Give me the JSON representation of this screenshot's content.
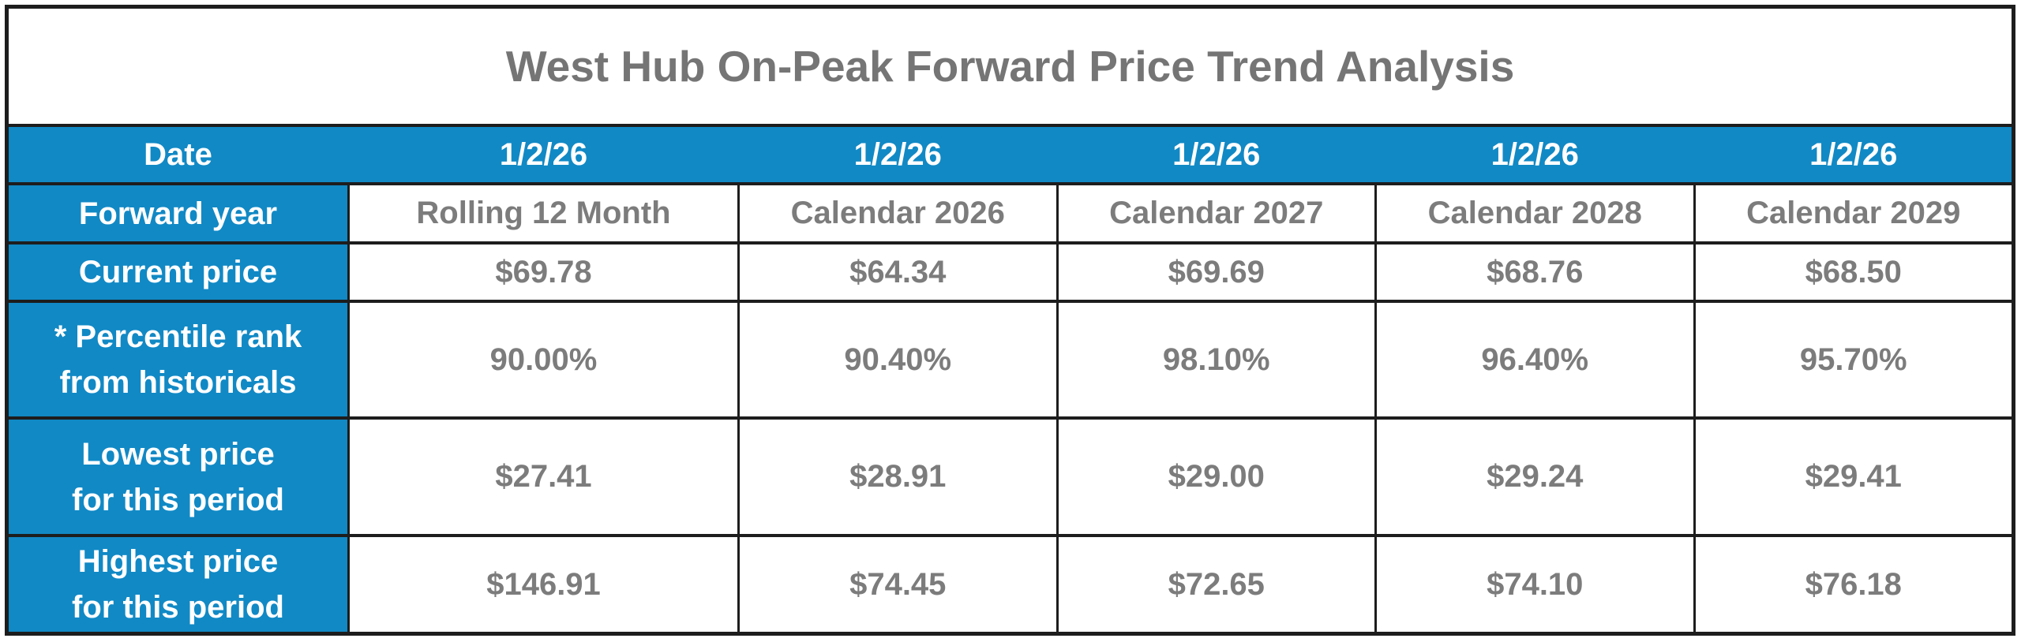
{
  "title": "West Hub On-Peak Forward Price Trend Analysis",
  "colors": {
    "header_blue": "#1189c5",
    "value_gray": "#7c7c7c",
    "title_gray": "#757575",
    "border_black": "#1d1d1d"
  },
  "table": {
    "date_row": {
      "label": "Date",
      "values": [
        "1/2/26",
        "1/2/26",
        "1/2/26",
        "1/2/26",
        "1/2/26"
      ]
    },
    "rows": [
      {
        "key": "forward-year",
        "lines": [
          "Forward year"
        ],
        "values": [
          "Rolling 12 Month",
          "Calendar 2026",
          "Calendar 2027",
          "Calendar 2028",
          "Calendar 2029"
        ]
      },
      {
        "key": "current-price",
        "lines": [
          "Current price"
        ],
        "values": [
          "$69.78",
          "$64.34",
          "$69.69",
          "$68.76",
          "$68.50"
        ]
      },
      {
        "key": "percentile-rank",
        "lines": [
          "* Percentile rank",
          "from historicals"
        ],
        "values": [
          "90.00%",
          "90.40%",
          "98.10%",
          "96.40%",
          "95.70%"
        ]
      },
      {
        "key": "lowest-price",
        "lines": [
          "Lowest price",
          "for this period"
        ],
        "values": [
          "$27.41",
          "$28.91",
          "$29.00",
          "$29.24",
          "$29.41"
        ]
      },
      {
        "key": "highest-price",
        "lines": [
          "Highest price",
          "for this period"
        ],
        "values": [
          "$146.91",
          "$74.45",
          "$72.65",
          "$74.10",
          "$76.18"
        ]
      }
    ]
  },
  "chart_data": {
    "type": "table",
    "title": "West Hub On-Peak Forward Price Trend Analysis",
    "columns": [
      "Row label",
      "Rolling 12 Month",
      "Calendar 2026",
      "Calendar 2027",
      "Calendar 2028",
      "Calendar 2029"
    ],
    "rows": [
      [
        "Date",
        "1/2/26",
        "1/2/26",
        "1/2/26",
        "1/2/26",
        "1/2/26"
      ],
      [
        "Forward year",
        "Rolling 12 Month",
        "Calendar 2026",
        "Calendar 2027",
        "Calendar 2028",
        "Calendar 2029"
      ],
      [
        "Current price",
        "$69.78",
        "$64.34",
        "$69.69",
        "$68.76",
        "$68.50"
      ],
      [
        "* Percentile rank from historicals",
        "90.00%",
        "90.40%",
        "98.10%",
        "96.40%",
        "95.70%"
      ],
      [
        "Lowest price for this period",
        "$27.41",
        "$28.91",
        "$29.00",
        "$29.24",
        "$29.41"
      ],
      [
        "Highest price for this period",
        "$146.91",
        "$74.45",
        "$72.65",
        "$74.10",
        "$76.18"
      ]
    ],
    "current_price": [
      69.78,
      64.34,
      69.69,
      68.76,
      68.5
    ],
    "percentile_rank_pct": [
      90.0,
      90.4,
      98.1,
      96.4,
      95.7
    ],
    "lowest_price": [
      27.41,
      28.91,
      29.0,
      29.24,
      29.41
    ],
    "highest_price": [
      146.91,
      74.45,
      72.65,
      74.1,
      76.18
    ]
  }
}
